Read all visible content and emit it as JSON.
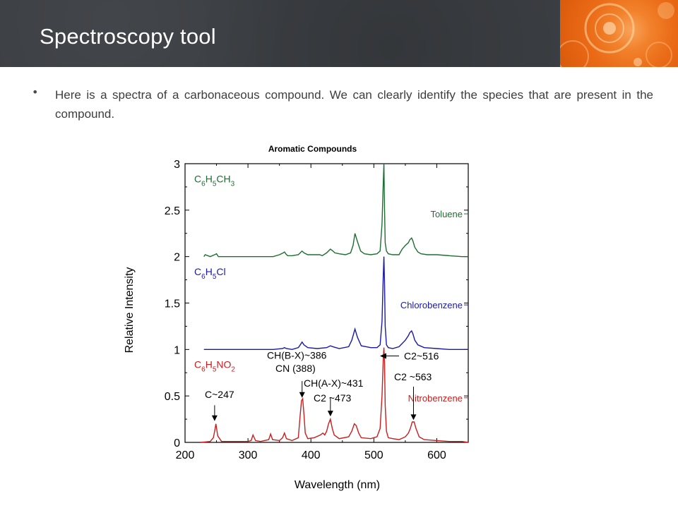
{
  "slide": {
    "title": "Spectroscopy tool",
    "bullet": "Here is a spectra of a carbonaceous compound. We can clearly identify the species that are present in the compound."
  },
  "colors": {
    "header_bg": "#3b3e42",
    "accent_orange": "#f2812b",
    "toluene": "#1e6e32",
    "chlorobenzene": "#1a1aa6",
    "nitrobenzene": "#c81e1e"
  },
  "chart_data": {
    "type": "line",
    "title": "Aromatic Compounds",
    "xlabel": "Wavelength (nm)",
    "ylabel": "Relative Intensity",
    "xlim": [
      200,
      650
    ],
    "ylim": [
      0,
      3
    ],
    "xticks": [
      200,
      300,
      400,
      500,
      600
    ],
    "yticks": [
      0,
      0.5,
      1,
      1.5,
      2,
      2.5,
      3
    ],
    "ytick_labels": [
      "0",
      "0.5",
      "1",
      "1.5",
      "2",
      "2.5",
      "3"
    ],
    "grid": false,
    "series": [
      {
        "name": "Toluene",
        "formula": [
          "C",
          "6",
          "H",
          "5",
          "CH",
          "3"
        ],
        "color": "#1e6e32",
        "x": [
          230,
          232,
          240,
          247,
          250,
          253,
          260,
          300,
          305,
          310,
          330,
          340,
          350,
          356,
          358,
          360,
          363,
          370,
          380,
          383,
          386,
          389,
          395,
          410,
          414,
          418,
          425,
          431,
          435,
          438,
          445,
          455,
          463,
          467,
          470,
          474,
          479,
          485,
          495,
          505,
          510,
          513,
          515,
          516,
          517,
          518,
          520,
          523,
          530,
          540,
          545,
          550,
          555,
          557,
          560,
          562,
          565,
          570,
          575,
          585,
          600,
          620,
          640,
          650
        ],
        "y": [
          2.0,
          2.02,
          2.0,
          2.02,
          2.03,
          2.0,
          2.0,
          2.0,
          2.0,
          2.0,
          2.0,
          2.0,
          2.02,
          2.04,
          2.05,
          2.03,
          2.01,
          2.01,
          2.02,
          2.04,
          2.06,
          2.04,
          2.02,
          2.02,
          2.02,
          2.01,
          2.04,
          2.08,
          2.06,
          2.04,
          2.03,
          2.02,
          2.04,
          2.12,
          2.25,
          2.16,
          2.06,
          2.03,
          2.02,
          2.03,
          2.06,
          2.35,
          2.8,
          3.0,
          2.5,
          2.15,
          2.06,
          2.03,
          2.02,
          2.02,
          2.08,
          2.12,
          2.15,
          2.18,
          2.2,
          2.17,
          2.1,
          2.05,
          2.03,
          2.02,
          2.02,
          2.01,
          2.0,
          2.0
        ]
      },
      {
        "name": "Chlorobenzene",
        "formula": [
          "C",
          "6",
          "H",
          "5",
          "Cl",
          ""
        ],
        "color": "#1a1aa6",
        "x": [
          230,
          260,
          300,
          340,
          355,
          358,
          361,
          370,
          380,
          383,
          386,
          389,
          395,
          410,
          425,
          431,
          435,
          445,
          460,
          465,
          470,
          474,
          480,
          495,
          505,
          510,
          513,
          515,
          516,
          517,
          518,
          520,
          523,
          530,
          540,
          550,
          555,
          557,
          560,
          562,
          565,
          570,
          580,
          600,
          620,
          650
        ],
        "y": [
          1.0,
          1.0,
          1.0,
          1.0,
          1.01,
          1.02,
          1.01,
          1.0,
          1.02,
          1.05,
          1.08,
          1.05,
          1.02,
          1.01,
          1.02,
          1.04,
          1.03,
          1.01,
          1.03,
          1.1,
          1.22,
          1.13,
          1.04,
          1.02,
          1.02,
          1.05,
          1.3,
          1.8,
          2.0,
          1.7,
          1.25,
          1.05,
          1.02,
          1.01,
          1.03,
          1.1,
          1.15,
          1.18,
          1.2,
          1.17,
          1.1,
          1.05,
          1.02,
          1.01,
          1.0,
          1.0
        ]
      },
      {
        "name": "Nitrobenzene",
        "formula": [
          "C",
          "6",
          "H",
          "5",
          "NO",
          "2"
        ],
        "color": "#c81e1e",
        "x": [
          225,
          240,
          245,
          247,
          249,
          252,
          258,
          280,
          300,
          305,
          308,
          312,
          320,
          333,
          336,
          339,
          350,
          355,
          358,
          361,
          370,
          380,
          383,
          385,
          387,
          389,
          391,
          395,
          405,
          415,
          419,
          422,
          425,
          428,
          431,
          434,
          437,
          445,
          460,
          465,
          469,
          472,
          476,
          480,
          495,
          505,
          510,
          513,
          515,
          516,
          517,
          518,
          520,
          523,
          530,
          540,
          550,
          555,
          558,
          561,
          564,
          567,
          572,
          580,
          600,
          620,
          640,
          650
        ],
        "y": [
          0.0,
          0.01,
          0.05,
          0.12,
          0.2,
          0.07,
          0.01,
          0.01,
          0.01,
          0.02,
          0.08,
          0.02,
          0.01,
          0.03,
          0.09,
          0.03,
          0.02,
          0.05,
          0.1,
          0.04,
          0.02,
          0.05,
          0.3,
          0.45,
          0.47,
          0.3,
          0.1,
          0.04,
          0.05,
          0.08,
          0.1,
          0.08,
          0.12,
          0.2,
          0.25,
          0.15,
          0.08,
          0.04,
          0.06,
          0.12,
          0.2,
          0.18,
          0.1,
          0.05,
          0.04,
          0.06,
          0.15,
          0.5,
          0.9,
          1.02,
          0.85,
          0.4,
          0.12,
          0.05,
          0.04,
          0.03,
          0.06,
          0.1,
          0.15,
          0.22,
          0.22,
          0.15,
          0.06,
          0.03,
          0.02,
          0.01,
          0.01,
          0.0
        ]
      }
    ],
    "annotations": [
      {
        "lines": [
          "CH(B-X)~386",
          "CN (388)"
        ]
      },
      {
        "lines": [
          "C2~516"
        ]
      },
      {
        "lines": [
          "CH(A-X)~431"
        ]
      },
      {
        "lines": [
          "C2 ~473"
        ]
      },
      {
        "lines": [
          "C2 ~563"
        ]
      },
      {
        "lines": [
          "C~247"
        ]
      }
    ]
  }
}
